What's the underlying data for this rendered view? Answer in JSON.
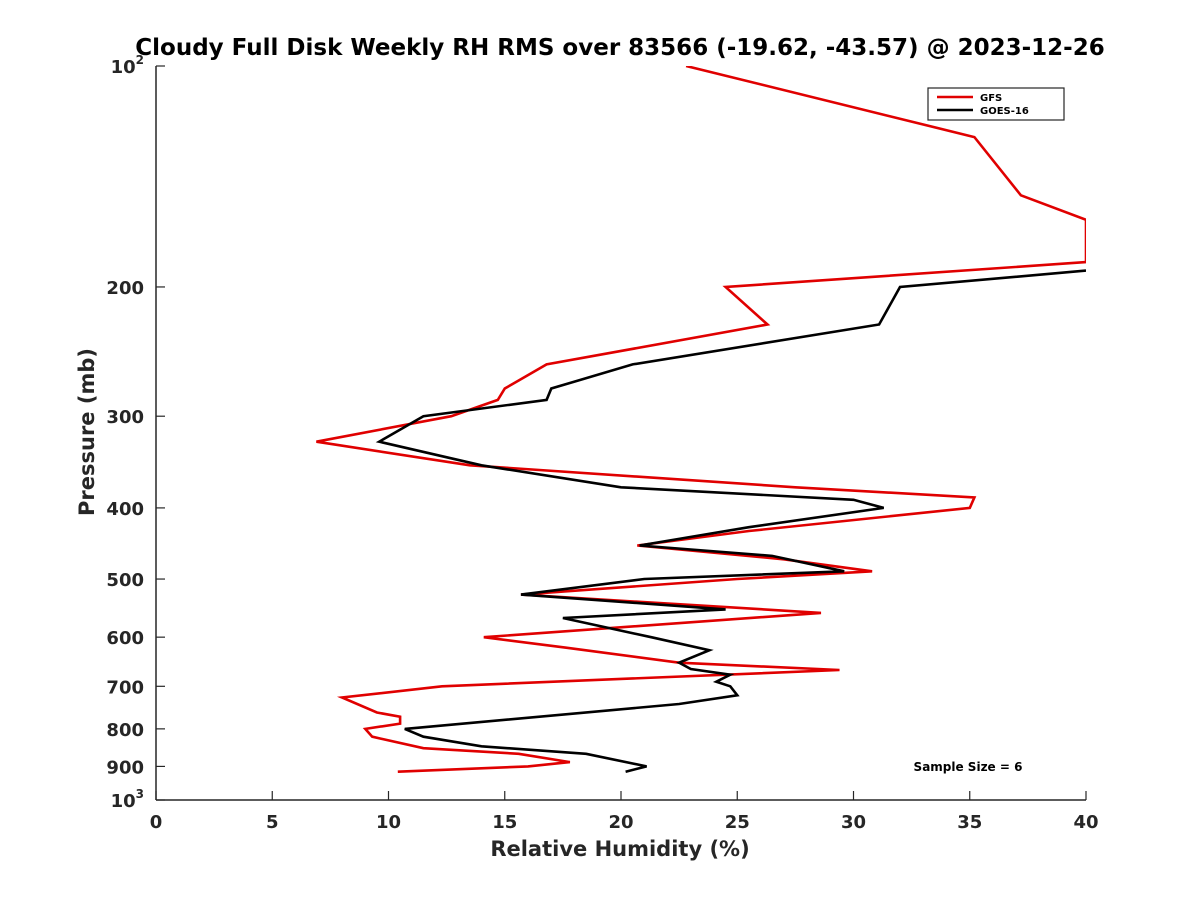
{
  "chart_data": {
    "type": "line",
    "title": "Cloudy Full Disk Weekly RH RMS over 83566 (-19.62, -43.57) @ 2023-12-26",
    "xlabel": "Relative Humidity (%)",
    "ylabel": "Pressure (mb)",
    "xlim": [
      0,
      40
    ],
    "ylim": [
      100,
      1000
    ],
    "y_scale": "log",
    "y_reversed": true,
    "x_ticks": [
      "0",
      "5",
      "10",
      "15",
      "20",
      "25",
      "30",
      "35",
      "40"
    ],
    "y_ticks": [
      {
        "value": 100,
        "base": "10",
        "exp": "2"
      },
      {
        "value": 200,
        "label": "200"
      },
      {
        "value": 300,
        "label": "300"
      },
      {
        "value": 400,
        "label": "400"
      },
      {
        "value": 500,
        "label": "500"
      },
      {
        "value": 600,
        "label": "600"
      },
      {
        "value": 700,
        "label": "700"
      },
      {
        "value": 800,
        "label": "800"
      },
      {
        "value": 900,
        "label": "900"
      },
      {
        "value": 1000,
        "base": "10",
        "exp": "3"
      }
    ],
    "grid": false,
    "legend_position": "top-right",
    "annotation": "Sample Size = 6",
    "series": [
      {
        "name": "GFS",
        "color": "#e00000",
        "points": [
          [
            22.8,
            100
          ],
          [
            35.2,
            125
          ],
          [
            37.2,
            150
          ],
          [
            40.0,
            162
          ],
          [
            40.0,
            185
          ],
          [
            24.5,
            200
          ],
          [
            26.3,
            225
          ],
          [
            16.8,
            255
          ],
          [
            15.0,
            275
          ],
          [
            14.7,
            285
          ],
          [
            12.7,
            300
          ],
          [
            6.9,
            325
          ],
          [
            13.5,
            350
          ],
          [
            27.5,
            375
          ],
          [
            35.2,
            387
          ],
          [
            35.0,
            400
          ],
          [
            25.5,
            430
          ],
          [
            20.7,
            450
          ],
          [
            27.0,
            470
          ],
          [
            30.8,
            488
          ],
          [
            25.0,
            500
          ],
          [
            15.7,
            525
          ],
          [
            28.6,
            556
          ],
          [
            14.1,
            600
          ],
          [
            17.6,
            620
          ],
          [
            22.5,
            650
          ],
          [
            29.4,
            665
          ],
          [
            12.3,
            700
          ],
          [
            8.0,
            725
          ],
          [
            9.5,
            760
          ],
          [
            10.5,
            770
          ],
          [
            10.5,
            787
          ],
          [
            9.0,
            800
          ],
          [
            9.3,
            820
          ],
          [
            11.5,
            850
          ],
          [
            15.6,
            865
          ],
          [
            17.8,
            888
          ],
          [
            16.0,
            900
          ],
          [
            10.4,
            915
          ]
        ]
      },
      {
        "name": "GOES-16",
        "color": "#000000",
        "points": [
          [
            40.0,
            190
          ],
          [
            32.0,
            200
          ],
          [
            31.1,
            225
          ],
          [
            20.5,
            255
          ],
          [
            17.0,
            275
          ],
          [
            16.8,
            285
          ],
          [
            11.5,
            300
          ],
          [
            9.6,
            325
          ],
          [
            14.0,
            350
          ],
          [
            20.0,
            375
          ],
          [
            30.0,
            390
          ],
          [
            31.3,
            400
          ],
          [
            25.5,
            425
          ],
          [
            20.8,
            450
          ],
          [
            26.5,
            465
          ],
          [
            29.6,
            488
          ],
          [
            21.0,
            500
          ],
          [
            15.7,
            525
          ],
          [
            24.5,
            550
          ],
          [
            17.5,
            565
          ],
          [
            21.3,
            600
          ],
          [
            23.8,
            625
          ],
          [
            22.5,
            650
          ],
          [
            23.0,
            663
          ],
          [
            24.7,
            675
          ],
          [
            24.1,
            690
          ],
          [
            24.7,
            700
          ],
          [
            25.0,
            720
          ],
          [
            22.5,
            740
          ],
          [
            10.7,
            800
          ],
          [
            11.5,
            820
          ],
          [
            14.0,
            845
          ],
          [
            18.5,
            865
          ],
          [
            21.1,
            900
          ],
          [
            20.2,
            915
          ]
        ]
      }
    ]
  }
}
